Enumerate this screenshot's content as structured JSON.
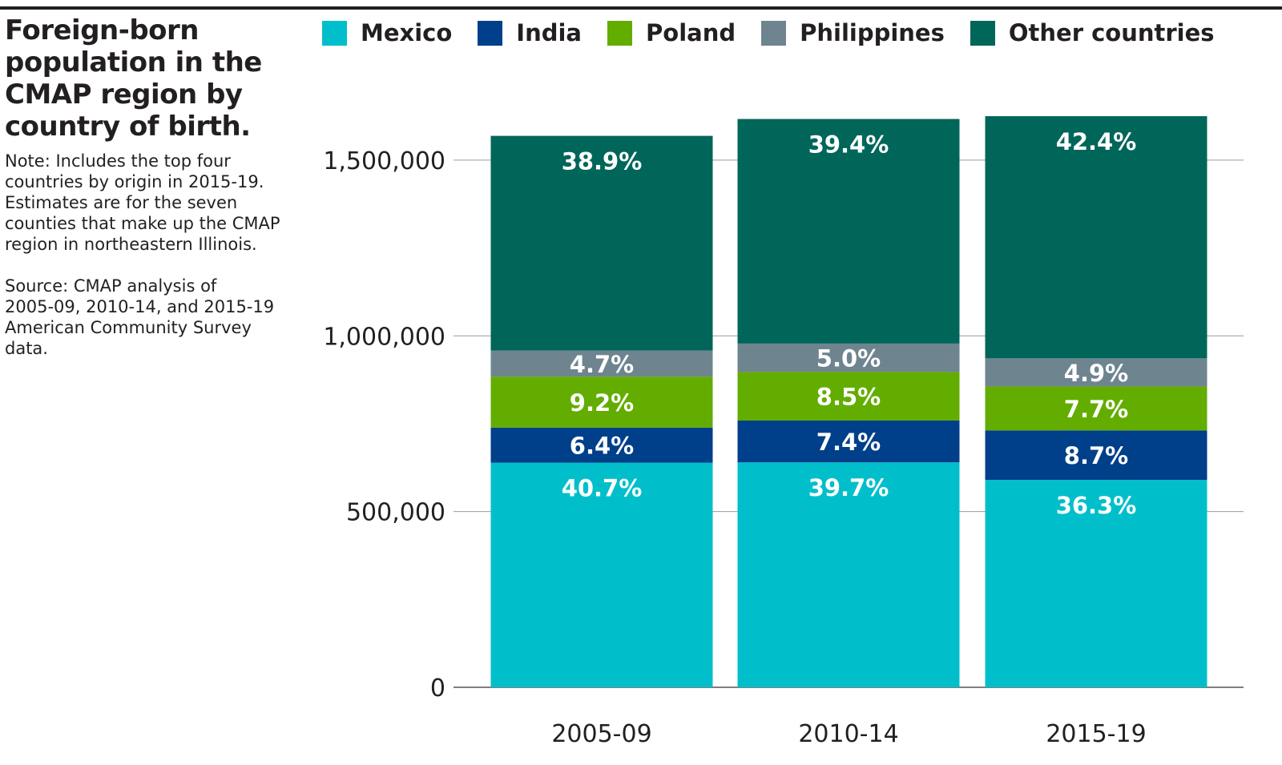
{
  "title": "Foreign-born population in the CMAP region by country of birth.",
  "title_lines": [
    "Foreign-born",
    "population in the",
    "CMAP region by",
    "country of birth."
  ],
  "note_lines": [
    "Note: Includes the top four",
    "countries by origin in 2015-19.",
    "Estimates are for the seven",
    "counties that make up the CMAP",
    "region in northeastern Illinois."
  ],
  "source_lines": [
    "Source: CMAP analysis of",
    "2005-09, 2010-14, and 2015-19",
    "American Community Survey",
    "data."
  ],
  "chart_data": {
    "type": "bar",
    "stacked": true,
    "categories": [
      "2005-09",
      "2010-14",
      "2015-19"
    ],
    "ylim": [
      0,
      1600000
    ],
    "yticks": [
      0,
      500000,
      1000000,
      1500000
    ],
    "ytick_labels": [
      "0",
      "500,000",
      "1,000,000",
      "1,500,000"
    ],
    "grid": true,
    "legend_position": "top",
    "series": [
      {
        "name": "Mexico",
        "color": "#00bfcb",
        "values": [
          639000,
          640000,
          590000
        ],
        "labels": [
          "40.7%",
          "39.7%",
          "36.3%"
        ]
      },
      {
        "name": "India",
        "color": "#003f8a",
        "values": [
          100000,
          119000,
          141000
        ],
        "labels": [
          "6.4%",
          "7.4%",
          "8.7%"
        ]
      },
      {
        "name": "Poland",
        "color": "#63ad00",
        "values": [
          145000,
          138000,
          125000
        ],
        "labels": [
          "9.2%",
          "8.5%",
          "7.7%"
        ]
      },
      {
        "name": "Philippines",
        "color": "#6e8590",
        "values": [
          74000,
          81000,
          80000
        ],
        "labels": [
          "4.7%",
          "5.0%",
          "4.9%"
        ]
      },
      {
        "name": "Other countries",
        "color": "#00665a",
        "values": [
          611000,
          639000,
          689000
        ],
        "labels": [
          "38.9%",
          "39.4%",
          "42.4%"
        ]
      }
    ]
  }
}
